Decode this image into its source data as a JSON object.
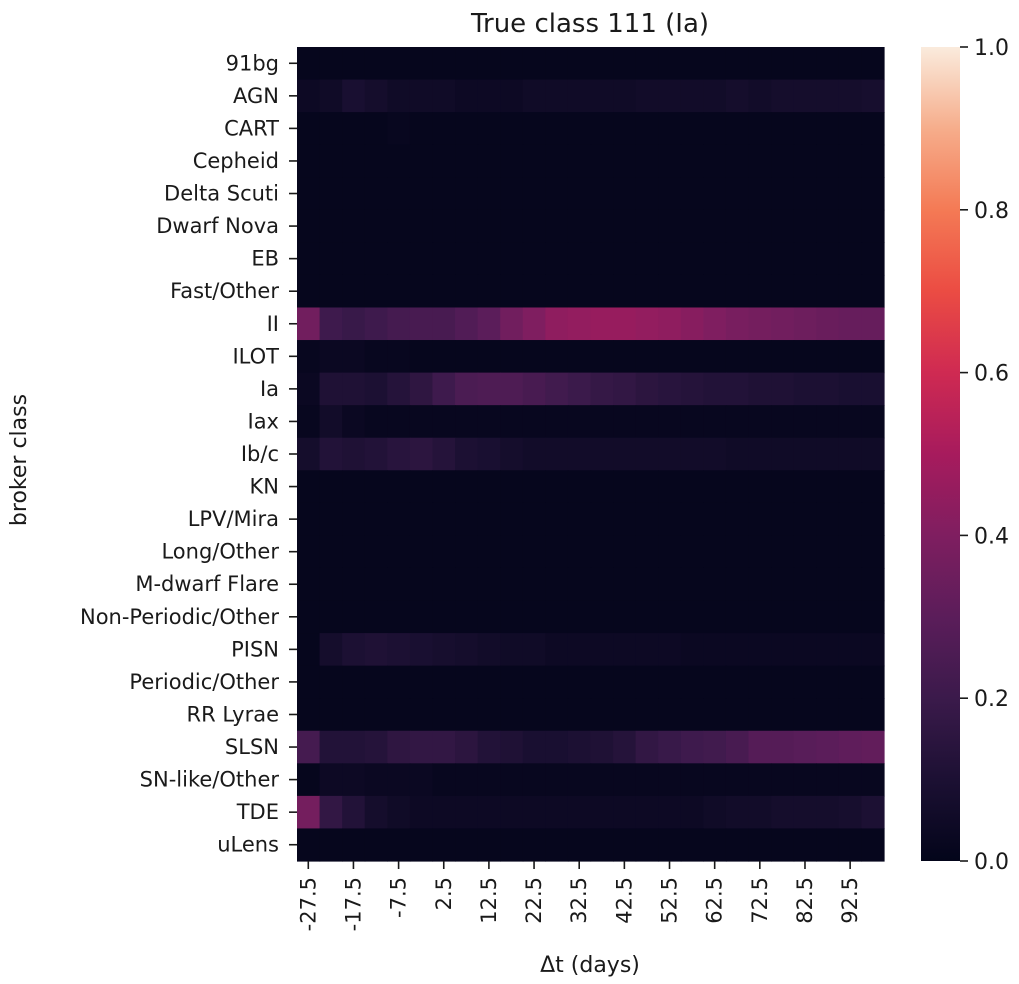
{
  "chart_data": {
    "type": "heatmap",
    "title": "True class 111 (Ia)",
    "xlabel": "Δt (days)",
    "ylabel": "broker class",
    "x_tick_labels": [
      "-27.5",
      "-17.5",
      "-7.5",
      "2.5",
      "12.5",
      "22.5",
      "32.5",
      "42.5",
      "52.5",
      "62.5",
      "72.5",
      "82.5",
      "92.5"
    ],
    "x_values": [
      -27.5,
      -22.5,
      -17.5,
      -12.5,
      -7.5,
      -2.5,
      2.5,
      7.5,
      12.5,
      17.5,
      22.5,
      27.5,
      32.5,
      37.5,
      42.5,
      47.5,
      52.5,
      57.5,
      62.5,
      67.5,
      72.5,
      77.5,
      82.5,
      87.5,
      92.5,
      97.5
    ],
    "rows": [
      "91bg",
      "AGN",
      "CART",
      "Cepheid",
      "Delta Scuti",
      "Dwarf Nova",
      "EB",
      "Fast/Other",
      "II",
      "ILOT",
      "Ia",
      "Iax",
      "Ib/c",
      "KN",
      "LPV/Mira",
      "Long/Other",
      "M-dwarf Flare",
      "Non-Periodic/Other",
      "PISN",
      "Periodic/Other",
      "RR Lyrae",
      "SLSN",
      "SN-like/Other",
      "TDE",
      "uLens"
    ],
    "values": [
      [
        0.01,
        0.01,
        0.01,
        0.01,
        0.01,
        0.01,
        0.01,
        0.01,
        0.01,
        0.01,
        0.01,
        0.01,
        0.01,
        0.01,
        0.01,
        0.01,
        0.01,
        0.01,
        0.01,
        0.01,
        0.01,
        0.01,
        0.01,
        0.01,
        0.01,
        0.01
      ],
      [
        0.04,
        0.05,
        0.09,
        0.07,
        0.05,
        0.05,
        0.05,
        0.04,
        0.04,
        0.04,
        0.05,
        0.05,
        0.05,
        0.05,
        0.05,
        0.06,
        0.06,
        0.06,
        0.06,
        0.07,
        0.06,
        0.07,
        0.07,
        0.07,
        0.07,
        0.08
      ],
      [
        0.01,
        0.01,
        0.01,
        0.01,
        0.02,
        0.01,
        0.01,
        0.01,
        0.01,
        0.01,
        0.01,
        0.01,
        0.01,
        0.01,
        0.01,
        0.01,
        0.01,
        0.01,
        0.01,
        0.01,
        0.01,
        0.01,
        0.01,
        0.01,
        0.01,
        0.01
      ],
      [
        0.01,
        0.01,
        0.01,
        0.01,
        0.01,
        0.01,
        0.01,
        0.01,
        0.01,
        0.01,
        0.01,
        0.01,
        0.01,
        0.01,
        0.01,
        0.01,
        0.01,
        0.01,
        0.01,
        0.01,
        0.01,
        0.01,
        0.01,
        0.01,
        0.01,
        0.01
      ],
      [
        0.01,
        0.01,
        0.01,
        0.01,
        0.01,
        0.01,
        0.01,
        0.01,
        0.01,
        0.01,
        0.01,
        0.01,
        0.01,
        0.01,
        0.01,
        0.01,
        0.01,
        0.01,
        0.01,
        0.01,
        0.01,
        0.01,
        0.01,
        0.01,
        0.01,
        0.01
      ],
      [
        0.01,
        0.01,
        0.01,
        0.01,
        0.01,
        0.01,
        0.01,
        0.01,
        0.01,
        0.01,
        0.01,
        0.01,
        0.01,
        0.01,
        0.01,
        0.01,
        0.01,
        0.01,
        0.01,
        0.01,
        0.01,
        0.01,
        0.01,
        0.01,
        0.01,
        0.01
      ],
      [
        0.01,
        0.01,
        0.01,
        0.01,
        0.01,
        0.01,
        0.01,
        0.01,
        0.01,
        0.01,
        0.01,
        0.01,
        0.01,
        0.01,
        0.01,
        0.01,
        0.01,
        0.01,
        0.01,
        0.01,
        0.01,
        0.01,
        0.01,
        0.01,
        0.01,
        0.01
      ],
      [
        0.01,
        0.01,
        0.01,
        0.01,
        0.01,
        0.01,
        0.01,
        0.01,
        0.01,
        0.01,
        0.01,
        0.01,
        0.01,
        0.01,
        0.01,
        0.01,
        0.01,
        0.01,
        0.01,
        0.01,
        0.01,
        0.01,
        0.01,
        0.01,
        0.01,
        0.01
      ],
      [
        0.36,
        0.21,
        0.19,
        0.21,
        0.23,
        0.24,
        0.24,
        0.27,
        0.3,
        0.36,
        0.4,
        0.44,
        0.45,
        0.46,
        0.46,
        0.45,
        0.44,
        0.42,
        0.4,
        0.38,
        0.37,
        0.36,
        0.35,
        0.34,
        0.33,
        0.33
      ],
      [
        0.02,
        0.03,
        0.03,
        0.02,
        0.02,
        0.01,
        0.01,
        0.01,
        0.01,
        0.01,
        0.01,
        0.01,
        0.01,
        0.01,
        0.01,
        0.01,
        0.01,
        0.01,
        0.01,
        0.01,
        0.01,
        0.01,
        0.01,
        0.01,
        0.01,
        0.01
      ],
      [
        0.03,
        0.11,
        0.11,
        0.1,
        0.13,
        0.16,
        0.21,
        0.25,
        0.26,
        0.26,
        0.24,
        0.22,
        0.2,
        0.18,
        0.17,
        0.15,
        0.14,
        0.13,
        0.12,
        0.12,
        0.11,
        0.11,
        0.1,
        0.1,
        0.09,
        0.09
      ],
      [
        0.02,
        0.06,
        0.03,
        0.02,
        0.02,
        0.02,
        0.02,
        0.02,
        0.02,
        0.02,
        0.02,
        0.02,
        0.02,
        0.02,
        0.02,
        0.02,
        0.02,
        0.02,
        0.02,
        0.02,
        0.02,
        0.02,
        0.02,
        0.02,
        0.02,
        0.02
      ],
      [
        0.07,
        0.12,
        0.11,
        0.12,
        0.14,
        0.15,
        0.13,
        0.1,
        0.09,
        0.07,
        0.06,
        0.06,
        0.06,
        0.06,
        0.06,
        0.06,
        0.06,
        0.06,
        0.06,
        0.05,
        0.05,
        0.05,
        0.05,
        0.05,
        0.05,
        0.05
      ],
      [
        0.01,
        0.01,
        0.01,
        0.01,
        0.01,
        0.01,
        0.01,
        0.01,
        0.01,
        0.01,
        0.01,
        0.01,
        0.01,
        0.01,
        0.01,
        0.01,
        0.01,
        0.01,
        0.01,
        0.01,
        0.01,
        0.01,
        0.01,
        0.01,
        0.01,
        0.01
      ],
      [
        0.01,
        0.01,
        0.01,
        0.01,
        0.01,
        0.01,
        0.01,
        0.01,
        0.01,
        0.01,
        0.01,
        0.01,
        0.01,
        0.01,
        0.01,
        0.01,
        0.01,
        0.01,
        0.01,
        0.01,
        0.01,
        0.01,
        0.01,
        0.01,
        0.01,
        0.01
      ],
      [
        0.01,
        0.01,
        0.01,
        0.01,
        0.01,
        0.01,
        0.01,
        0.01,
        0.01,
        0.01,
        0.01,
        0.01,
        0.01,
        0.01,
        0.01,
        0.01,
        0.01,
        0.01,
        0.01,
        0.01,
        0.01,
        0.01,
        0.01,
        0.01,
        0.01,
        0.01
      ],
      [
        0.01,
        0.01,
        0.01,
        0.01,
        0.01,
        0.01,
        0.01,
        0.01,
        0.01,
        0.01,
        0.01,
        0.01,
        0.01,
        0.01,
        0.01,
        0.01,
        0.01,
        0.01,
        0.01,
        0.01,
        0.01,
        0.01,
        0.01,
        0.01,
        0.01,
        0.01
      ],
      [
        0.01,
        0.01,
        0.01,
        0.01,
        0.01,
        0.01,
        0.01,
        0.01,
        0.01,
        0.01,
        0.01,
        0.01,
        0.01,
        0.01,
        0.01,
        0.01,
        0.01,
        0.01,
        0.01,
        0.01,
        0.01,
        0.01,
        0.01,
        0.01,
        0.01,
        0.01
      ],
      [
        0.01,
        0.07,
        0.1,
        0.11,
        0.1,
        0.09,
        0.08,
        0.07,
        0.06,
        0.05,
        0.05,
        0.04,
        0.04,
        0.04,
        0.04,
        0.04,
        0.04,
        0.03,
        0.03,
        0.03,
        0.03,
        0.03,
        0.03,
        0.03,
        0.03,
        0.03
      ],
      [
        0.01,
        0.01,
        0.01,
        0.01,
        0.01,
        0.01,
        0.01,
        0.01,
        0.01,
        0.01,
        0.01,
        0.01,
        0.01,
        0.01,
        0.01,
        0.01,
        0.01,
        0.01,
        0.01,
        0.01,
        0.01,
        0.01,
        0.01,
        0.01,
        0.01,
        0.01
      ],
      [
        0.01,
        0.01,
        0.01,
        0.01,
        0.01,
        0.01,
        0.01,
        0.01,
        0.01,
        0.01,
        0.01,
        0.01,
        0.01,
        0.01,
        0.01,
        0.01,
        0.01,
        0.01,
        0.01,
        0.01,
        0.01,
        0.01,
        0.01,
        0.01,
        0.01,
        0.01
      ],
      [
        0.23,
        0.12,
        0.12,
        0.13,
        0.16,
        0.17,
        0.17,
        0.15,
        0.12,
        0.11,
        0.09,
        0.09,
        0.1,
        0.11,
        0.13,
        0.17,
        0.19,
        0.21,
        0.22,
        0.24,
        0.28,
        0.28,
        0.29,
        0.3,
        0.31,
        0.32
      ],
      [
        0.01,
        0.04,
        0.04,
        0.03,
        0.03,
        0.03,
        0.02,
        0.02,
        0.02,
        0.02,
        0.02,
        0.02,
        0.02,
        0.02,
        0.02,
        0.02,
        0.02,
        0.02,
        0.02,
        0.02,
        0.02,
        0.02,
        0.02,
        0.02,
        0.02,
        0.02
      ],
      [
        0.37,
        0.17,
        0.12,
        0.07,
        0.05,
        0.04,
        0.04,
        0.04,
        0.04,
        0.04,
        0.04,
        0.04,
        0.04,
        0.04,
        0.04,
        0.04,
        0.04,
        0.04,
        0.05,
        0.06,
        0.06,
        0.07,
        0.07,
        0.07,
        0.08,
        0.1
      ],
      [
        0.01,
        0.01,
        0.01,
        0.01,
        0.01,
        0.01,
        0.01,
        0.01,
        0.01,
        0.01,
        0.01,
        0.01,
        0.01,
        0.01,
        0.01,
        0.01,
        0.01,
        0.01,
        0.01,
        0.01,
        0.01,
        0.01,
        0.01,
        0.01,
        0.01,
        0.01
      ]
    ],
    "colorbar": {
      "ticks": [
        "0.0",
        "0.2",
        "0.4",
        "0.6",
        "0.8",
        "1.0"
      ],
      "tick_values": [
        0,
        0.2,
        0.4,
        0.6,
        0.8,
        1.0
      ],
      "range": [
        0,
        1
      ],
      "colormap": "rocket"
    },
    "grid": false
  }
}
